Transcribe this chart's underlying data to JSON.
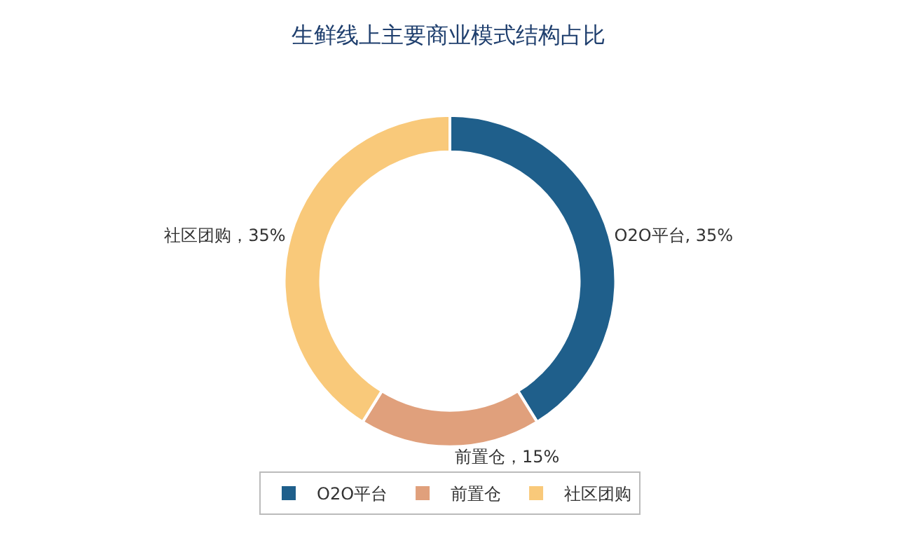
{
  "chart_data": {
    "type": "donut",
    "title": "生鲜线上主要商业模式结构占比",
    "categories": [
      "O2O平台",
      "前置仓",
      "社区团购"
    ],
    "values": [
      35,
      15,
      35
    ],
    "colors": [
      "#1f5f8b",
      "#e0a07c",
      "#f9c97a"
    ],
    "value_labels": [
      "O2O平台, 35%",
      "前置仓，15%",
      "社区团购，35%"
    ],
    "legend": "bottom"
  }
}
